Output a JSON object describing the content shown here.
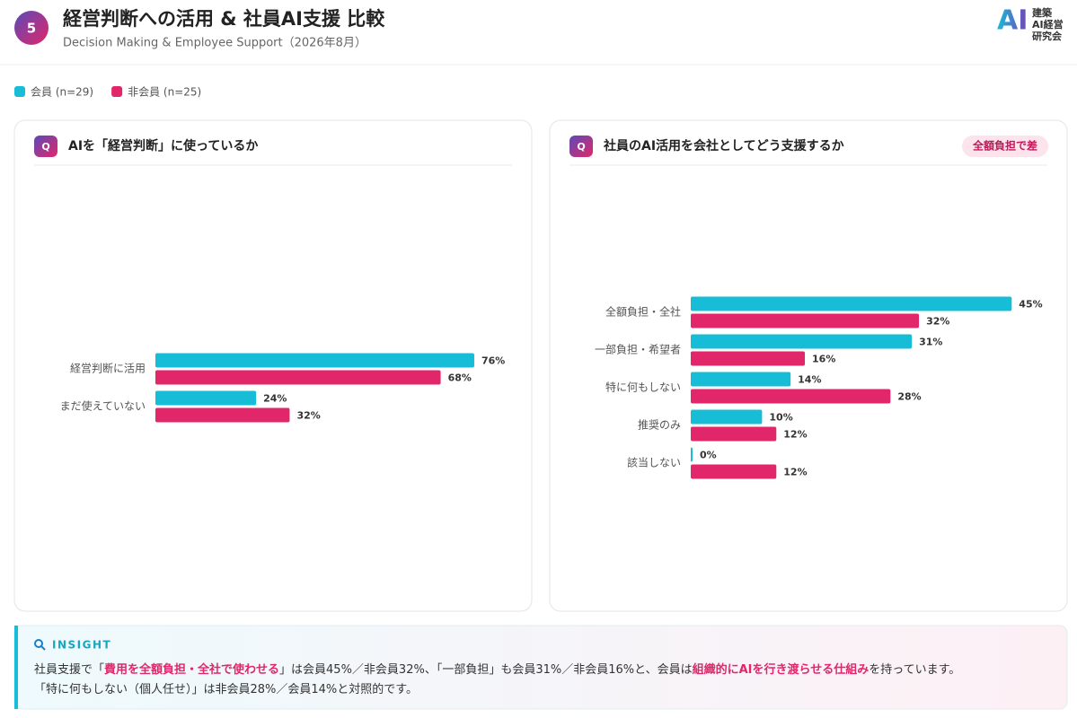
{
  "header": {
    "badge": "5",
    "title": "経営判断への活用 & 社員AI支援 比較",
    "subtitle": "Decision Making & Employee Support（2026年8月）",
    "logo": {
      "mark": "AI",
      "lines": [
        "建築",
        "AI経営",
        "研究会"
      ]
    }
  },
  "q_icon": "Q",
  "chart_data": [
    {
      "type": "bar",
      "orientation": "horizontal",
      "title": "AIを「経営判断」に使っているか",
      "categories": [
        "経営判断に活用",
        "まだ使えていない"
      ],
      "series": [
        {
          "name": "会員 (n=29)",
          "color": "#17bcd6",
          "values": [
            76,
            24
          ],
          "value_labels": [
            "76%",
            "24%"
          ]
        },
        {
          "name": "非会員 (n=25)",
          "color": "#e2266a",
          "values": [
            68,
            32
          ],
          "value_labels": [
            "68%",
            "32%"
          ]
        }
      ],
      "xlim": [
        0,
        85
      ]
    },
    {
      "type": "bar",
      "orientation": "horizontal",
      "title": "社員のAI活用を会社としてどう支援するか",
      "tag": "全額負担で差",
      "categories": [
        "全額負担・全社",
        "一部負担・希望者",
        "特に何もしない",
        "推奨のみ",
        "該当しない"
      ],
      "series": [
        {
          "color": "#17bcd6",
          "values": [
            45,
            31,
            14,
            10,
            0
          ],
          "value_labels": [
            "45%",
            "31%",
            "14%",
            "10%",
            "0%"
          ]
        },
        {
          "color": "#e2266a",
          "values": [
            32,
            16,
            28,
            12,
            12
          ],
          "value_labels": [
            "32%",
            "16%",
            "28%",
            "12%",
            "12%"
          ]
        }
      ],
      "xlim": [
        0,
        50
      ]
    }
  ],
  "insight": {
    "label": "INSIGHT",
    "lines": [
      [
        {
          "text": "社員支援で「"
        },
        {
          "text": "費用を全額負担・全社で使わせる",
          "emphasis": true
        },
        {
          "text": "」は会員45%／非会員32%、「一部負担」も会員31%／非会員16%と、会員は"
        },
        {
          "text": "組織的にAIを行き渡らせる仕組み",
          "emphasis": true
        },
        {
          "text": "を持っています。"
        }
      ],
      [
        {
          "text": "「特に何もしない（個人任せ）」は非会員28%／会員14%と対照的です。"
        }
      ]
    ]
  }
}
